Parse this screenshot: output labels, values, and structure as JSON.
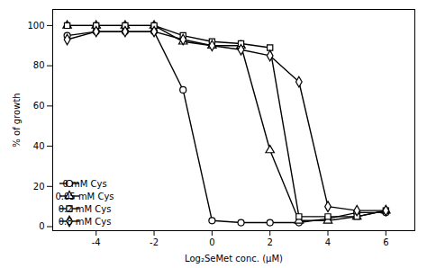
{
  "chart_data": {
    "type": "line",
    "xlabel": "Log₂SeMet conc. (μM)",
    "ylabel": "% of growth",
    "x": [
      -5,
      -4,
      -3,
      -2,
      -1,
      0,
      1,
      2,
      3,
      4,
      5,
      6
    ],
    "series": [
      {
        "name": "0 mM Cys",
        "marker": "circle",
        "values": [
          95,
          97,
          97,
          97,
          68,
          3,
          2,
          2,
          2,
          4,
          7,
          7
        ]
      },
      {
        "name": "0.05 mM Cys",
        "marker": "triangle",
        "values": [
          100,
          100,
          100,
          100,
          92,
          90,
          90,
          38,
          3,
          3,
          5,
          8
        ]
      },
      {
        "name": "0.2 mM Cys",
        "marker": "square",
        "values": [
          100,
          100,
          100,
          100,
          95,
          92,
          91,
          89,
          5,
          5,
          5,
          8
        ]
      },
      {
        "name": "0.8 mM Cys",
        "marker": "diamond",
        "values": [
          93,
          97,
          97,
          97,
          93,
          90,
          88,
          85,
          72,
          10,
          8,
          8
        ]
      }
    ],
    "color": "#000000",
    "xlim": [
      -5.5,
      7
    ],
    "ylim": [
      -2,
      108
    ],
    "xticks": [
      -4,
      -2,
      0,
      2,
      4,
      6
    ],
    "yticks": [
      0,
      20,
      40,
      60,
      80,
      100
    ],
    "grid": false,
    "legend": "lower left"
  }
}
